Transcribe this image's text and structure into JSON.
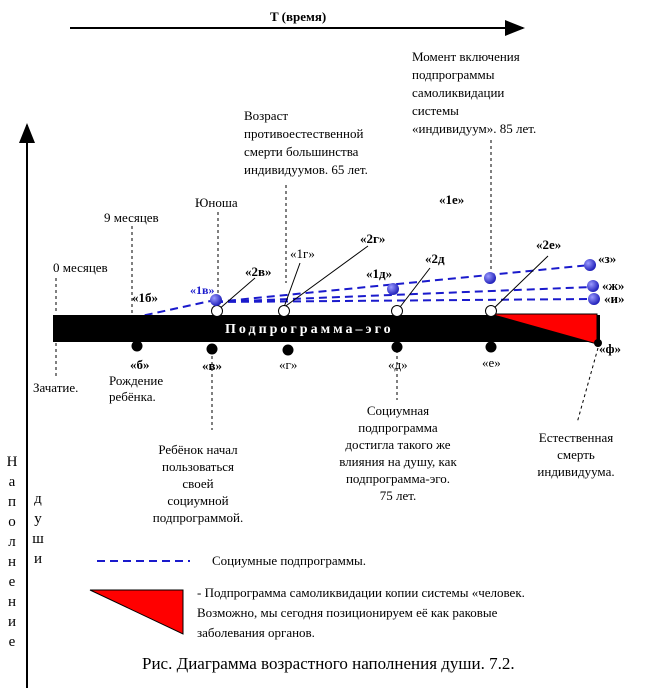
{
  "time_axis_label": "T (время)",
  "vertical_axis_left": "Наполнение",
  "vertical_axis_right": "души",
  "bar_label": "Подпрограмма–эго",
  "annotations": {
    "month0": "0 месяцев",
    "month9": "9 месяцев",
    "conception": "Зачатие.",
    "birth": [
      "Рождение",
      "ребёнка."
    ],
    "youth": "Юноша",
    "unnatural_death": [
      "Возраст",
      "противоестественной",
      "смерти большинства",
      "индивидуумов. 65 лет."
    ],
    "self_destruct": [
      "Момент включения",
      "подпрограммы",
      "самоликвидации",
      "системы",
      "«индивидуум». 85 лет."
    ],
    "child_own": [
      "Ребёнок  начал",
      "пользоваться",
      "своей",
      "социумной",
      "подпрограммой."
    ],
    "socium_equal": [
      "Социумная",
      "подпрограмма",
      "достигла  такого же",
      "влияния  на  душу, как",
      "подпрограмма-эго.",
      "75 лет."
    ],
    "natural_death": [
      "Естественная",
      "смерть",
      "индивидуума."
    ]
  },
  "points": {
    "p1b": "«1б»",
    "p1v": "«1в»",
    "p2v": "«2в»",
    "p1g": "«1г»",
    "p2g": "«2г»",
    "p1d": "«1д»",
    "p2d": "«2д",
    "p1e": "«1е»",
    "p2e": "«2е»",
    "pz": "«з»",
    "pzh": "«ж»",
    "pi": "«и»",
    "pb": "«б»",
    "pv": "«в»",
    "pg": "«г»",
    "pd": "«д»",
    "pe": "«е»",
    "pf": "«ф»"
  },
  "legend": {
    "dashed": "Социумные подпрограммы.",
    "triangle": [
      "- Подпрограмма  самоликвидации копии системы «человек.",
      "Возможно, мы сегодня позиционируем её как раковые",
      "заболевания органов."
    ]
  },
  "figure_caption": "Рис. Диаграмма возрастного наполнения  души. 7.2.",
  "colors": {
    "dash": "#1a1acc",
    "node_blue": "#3b3bd6",
    "triangle": "#ff0000",
    "bar": "#000000"
  }
}
